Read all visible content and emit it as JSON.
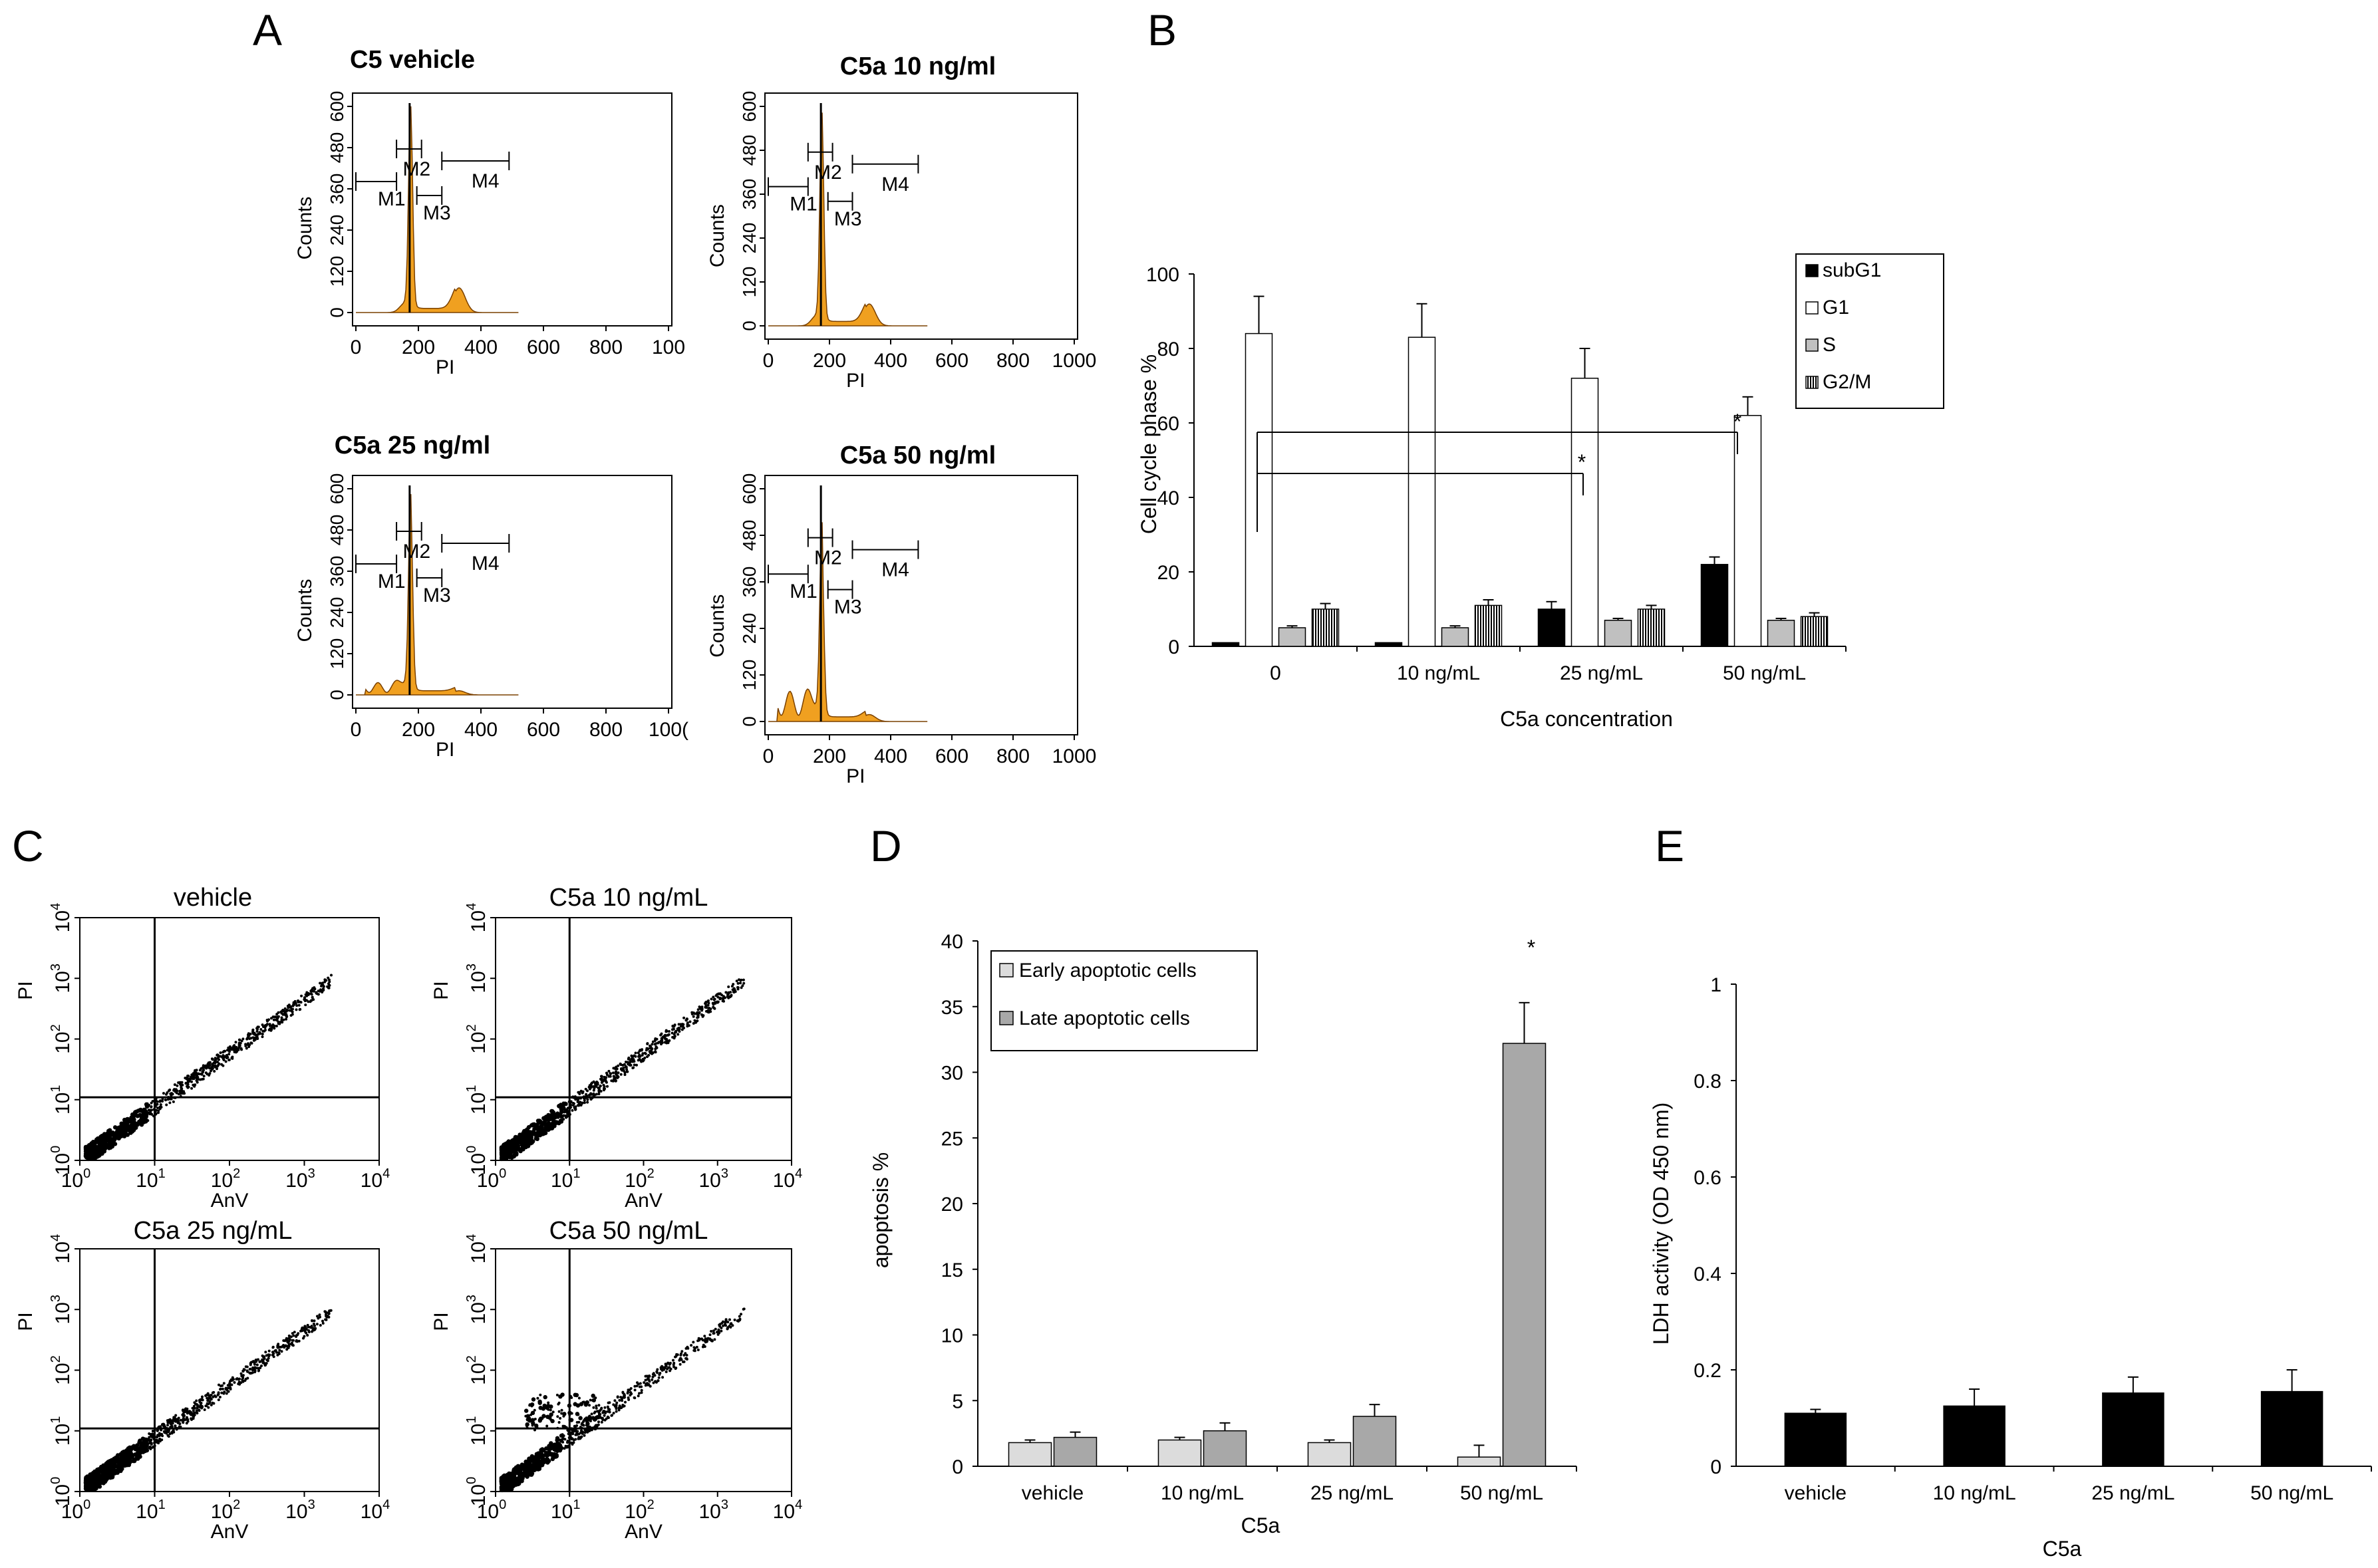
{
  "panels": {
    "A": "A",
    "B": "B",
    "C": "C",
    "D": "D",
    "E": "E"
  },
  "panel_A": {
    "ylabel": "Counts",
    "xlabel": "PI",
    "yticks": [
      "0",
      "120",
      "240",
      "360",
      "480",
      "600"
    ],
    "xticks": [
      "0",
      "200",
      "400",
      "600",
      "800",
      "1000"
    ],
    "markers": [
      "M1",
      "M2",
      "M3",
      "M4"
    ],
    "histograms": [
      {
        "title": "C5  vehicle",
        "xticks_override": [
          "0",
          "200",
          "400",
          "600",
          "800",
          "100"
        ]
      },
      {
        "title": "C5a 10 ng/ml"
      },
      {
        "title": "C5a 25 ng/ml",
        "xticks_override": [
          "0",
          "200",
          "400",
          "600",
          "800",
          "100("
        ]
      },
      {
        "title": "C5a 50 ng/ml"
      }
    ],
    "fill_color": "#f0a020"
  },
  "panel_C": {
    "ylabel": "PI",
    "xlabel": "AnV",
    "ticks": [
      "0",
      "1",
      "2",
      "3",
      "4"
    ],
    "plots": [
      {
        "title": "vehicle"
      },
      {
        "title": "C5a 10 ng/mL"
      },
      {
        "title": "C5a 25 ng/mL"
      },
      {
        "title": "C5a 50 ng/mL"
      }
    ]
  },
  "chart_data": [
    {
      "id": "B",
      "type": "bar",
      "categories": [
        "0",
        "10 ng/mL",
        "25 ng/mL",
        "50 ng/mL"
      ],
      "series": [
        {
          "name": "subG1",
          "values": [
            1,
            1,
            10,
            22
          ],
          "errors": [
            0,
            0,
            2,
            2
          ],
          "color": "#000000"
        },
        {
          "name": "G1",
          "values": [
            84,
            83,
            72,
            62
          ],
          "errors": [
            10,
            9,
            8,
            5
          ],
          "color": "#ffffff"
        },
        {
          "name": "S",
          "values": [
            5,
            5,
            7,
            7
          ],
          "errors": [
            0.5,
            0.5,
            0.5,
            0.5
          ],
          "color": "#c0c0c0"
        },
        {
          "name": "G2/M",
          "values": [
            10,
            11,
            10,
            8
          ],
          "errors": [
            1.5,
            1.5,
            1,
            1
          ],
          "color": "hatch"
        }
      ],
      "ylabel": "Cell cycle phase %",
      "xlabel": "C5a concentration",
      "ylim": [
        0,
        100
      ],
      "yticks": [
        "0",
        "20",
        "40",
        "60",
        "80",
        "100"
      ],
      "annotations": [
        "*",
        "*"
      ]
    },
    {
      "id": "D",
      "type": "bar",
      "categories": [
        "vehicle",
        "10 ng/mL",
        "25 ng/mL",
        "50 ng/mL"
      ],
      "series": [
        {
          "name": "Early apoptotic cells",
          "values": [
            1.8,
            2.0,
            1.8,
            0.7
          ],
          "errors": [
            0.2,
            0.2,
            0.2,
            0.9
          ],
          "color": "#dcdcdc"
        },
        {
          "name": "Late apoptotic cells",
          "values": [
            2.2,
            2.7,
            3.8,
            32.2
          ],
          "errors": [
            0.4,
            0.6,
            0.9,
            3.1
          ],
          "color": "#a8a8a8"
        }
      ],
      "ylabel": "apoptosis  %",
      "xlabel": "C5a",
      "ylim": [
        0,
        40
      ],
      "yticks": [
        "0",
        "5",
        "10",
        "15",
        "20",
        "25",
        "30",
        "35",
        "40"
      ],
      "annotations": [
        "*"
      ]
    },
    {
      "id": "E",
      "type": "bar",
      "categories": [
        "vehicle",
        "10 ng/mL",
        "25 ng/mL",
        "50 ng/mL"
      ],
      "series": [
        {
          "name": "LDH activity",
          "values": [
            0.11,
            0.125,
            0.152,
            0.155
          ],
          "errors": [
            0.008,
            0.035,
            0.033,
            0.045
          ],
          "color": "#000000"
        }
      ],
      "ylabel": "LDH activity (OD 450 nm)",
      "xlabel": "C5a",
      "ylim": [
        0,
        1
      ],
      "yticks": [
        "0",
        "0.2",
        "0.4",
        "0.6",
        "0.8",
        "1"
      ]
    }
  ]
}
